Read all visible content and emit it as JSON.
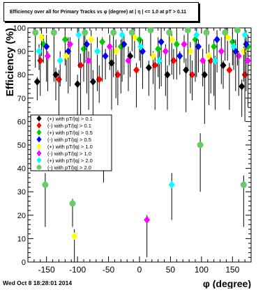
{
  "chart_data": {
    "type": "scatter",
    "title": "Efficiency over all for Primary Tracks vs φ (degree) at | η | <= 1.0 at pT > 0.11",
    "xlabel": "φ (degree)",
    "ylabel": "Efficiency (%)",
    "xlim": [
      -180,
      180
    ],
    "ylim": [
      0,
      100
    ],
    "x_ticks": [
      "-150",
      "-100",
      "-50",
      "0",
      "50",
      "100",
      "150"
    ],
    "y_ticks": [
      "0",
      "10",
      "20",
      "30",
      "40",
      "50",
      "60",
      "70",
      "80",
      "90",
      "100"
    ],
    "grid": false,
    "legend_position": "middle-left",
    "series": [
      {
        "name": "(+) with pT/|q| > 0.1",
        "color": "#000000",
        "shape": "diamond",
        "values": [
          [
            -165,
            77
          ],
          [
            -135,
            80
          ],
          [
            -100,
            76
          ],
          [
            -75,
            77
          ],
          [
            -45,
            85
          ],
          [
            -15,
            88
          ],
          [
            15,
            83
          ],
          [
            45,
            80
          ],
          [
            75,
            82
          ],
          [
            105,
            80
          ],
          [
            135,
            84
          ],
          [
            165,
            75
          ]
        ]
      },
      {
        "name": "(-) with pT/|q| > 0.1",
        "color": "#ff0000",
        "shape": "diamond",
        "values": [
          [
            -160,
            86
          ],
          [
            -130,
            78
          ],
          [
            -95,
            84
          ],
          [
            -65,
            78
          ],
          [
            -35,
            80
          ],
          [
            -5,
            82
          ],
          [
            25,
            84
          ],
          [
            55,
            86
          ],
          [
            85,
            80
          ],
          [
            115,
            86
          ],
          [
            145,
            82
          ],
          [
            170,
            80
          ]
        ]
      },
      {
        "name": "(+) with pT/|q| > 0.5",
        "color": "#00cc00",
        "shape": "diamond",
        "values": [
          [
            -155,
            93
          ],
          [
            -120,
            95
          ],
          [
            -90,
            91
          ],
          [
            -60,
            94
          ],
          [
            -30,
            92
          ],
          [
            0,
            95
          ],
          [
            30,
            91
          ],
          [
            60,
            93
          ],
          [
            90,
            95
          ],
          [
            120,
            92
          ],
          [
            150,
            94
          ],
          [
            175,
            92
          ]
        ]
      },
      {
        "name": "(-) with pT/|q| > 0.5",
        "color": "#0000ff",
        "shape": "diamond",
        "values": [
          [
            -150,
            92
          ],
          [
            -115,
            90
          ],
          [
            -85,
            93
          ],
          [
            -55,
            88
          ],
          [
            -25,
            93
          ],
          [
            5,
            90
          ],
          [
            35,
            94
          ],
          [
            65,
            88
          ],
          [
            95,
            92
          ],
          [
            125,
            95
          ],
          [
            155,
            90
          ],
          [
            172,
            93
          ]
        ]
      },
      {
        "name": "(+) with pT/|q| > 1.0",
        "color": "#ffff00",
        "shape": "diamond",
        "values": [
          [
            -158,
            96
          ],
          [
            -118,
            88
          ],
          [
            -105,
            11
          ],
          [
            -78,
            95
          ],
          [
            -38,
            90
          ],
          [
            -8,
            96
          ],
          [
            22,
            88
          ],
          [
            52,
            95
          ],
          [
            82,
            90
          ],
          [
            112,
            88
          ],
          [
            142,
            96
          ],
          [
            168,
            90
          ]
        ]
      },
      {
        "name": "(-) with pT/|q| > 1.0",
        "color": "#ff00ff",
        "shape": "diamond",
        "values": [
          [
            -148,
            88
          ],
          [
            -112,
            93
          ],
          [
            -82,
            86
          ],
          [
            -48,
            92
          ],
          [
            -18,
            86
          ],
          [
            12,
            18
          ],
          [
            42,
            90
          ],
          [
            72,
            93
          ],
          [
            102,
            86
          ],
          [
            132,
            90
          ],
          [
            160,
            88
          ],
          [
            175,
            86
          ]
        ]
      },
      {
        "name": "(+) with pT/|q| > 2.0",
        "color": "#00ffff",
        "shape": "diamond",
        "values": [
          [
            -162,
            90
          ],
          [
            -128,
            86
          ],
          [
            -98,
            97
          ],
          [
            -68,
            90
          ],
          [
            -28,
            97
          ],
          [
            2,
            92
          ],
          [
            32,
            86
          ],
          [
            52,
            33
          ],
          [
            92,
            97
          ],
          [
            122,
            86
          ],
          [
            152,
            92
          ],
          [
            170,
            97
          ]
        ]
      },
      {
        "name": "(-) with pT/|q| > 2.0",
        "color": "#66cc66",
        "shape": "circle",
        "values": [
          [
            -168,
            98
          ],
          [
            -152,
            33
          ],
          [
            -138,
            98
          ],
          [
            -108,
            25
          ],
          [
            -88,
            98
          ],
          [
            -58,
            50
          ],
          [
            -42,
            98
          ],
          [
            -12,
            98
          ],
          [
            18,
            99
          ],
          [
            48,
            98
          ],
          [
            78,
            99
          ],
          [
            98,
            50
          ],
          [
            108,
            98
          ],
          [
            138,
            98
          ],
          [
            158,
            99
          ],
          [
            168,
            33
          ]
        ]
      }
    ],
    "legend": [
      {
        "text": "(+) with pT/|q| > 0.1",
        "color": "#000000",
        "shape": "diamond"
      },
      {
        "text": "(-) with pT/|q| > 0.1",
        "color": "#ff0000",
        "shape": "diamond"
      },
      {
        "text": "(+) with pT/|q| > 0.5",
        "color": "#00cc00",
        "shape": "diamond"
      },
      {
        "text": "(-) with pT/|q| > 0.5",
        "color": "#0000ff",
        "shape": "diamond"
      },
      {
        "text": "(+) with pT/|q| > 1.0",
        "color": "#ffff00",
        "shape": "diamond"
      },
      {
        "text": "(-) with pT/|q| > 1.0",
        "color": "#ff00ff",
        "shape": "diamond"
      },
      {
        "text": "(+) with pT/|q| > 2.0",
        "color": "#00ffff",
        "shape": "diamond"
      },
      {
        "text": "(-) with pT/|q| > 2.0",
        "color": "#66cc66",
        "shape": "circle"
      }
    ]
  },
  "footer": {
    "timestamp": "Wed Oct  8 18:28:01 2014"
  }
}
